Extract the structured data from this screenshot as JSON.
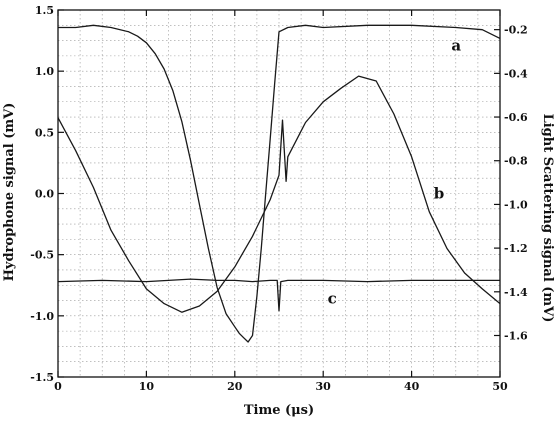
{
  "chart_data": {
    "type": "line",
    "xlabel": "Time  (μs)",
    "ylabel_left": "Hydrophone signal (mV)",
    "ylabel_right": "Light Scattering signal (mV)",
    "xlim": [
      0,
      50
    ],
    "ylim_left": [
      -1.5,
      1.5
    ],
    "ylim_right": [
      -1.79,
      -0.11
    ],
    "x_ticks": [
      "0",
      "10",
      "20",
      "30",
      "40",
      "50"
    ],
    "y_left_ticks": [
      "1.5",
      "1.0",
      "0.5",
      "0.0",
      "-0.5",
      "-1.0",
      "-1.5"
    ],
    "y_right_ticks": [
      "-0.2",
      "-0.4",
      "-0.6",
      "-0.8",
      "-1.0",
      "-1.2",
      "-1.4",
      "-1.6"
    ],
    "grid": true,
    "series": [
      {
        "name": "a",
        "axis": "right",
        "x": [
          0,
          2,
          4,
          6,
          8,
          9,
          10,
          11,
          12,
          13,
          14,
          15,
          16,
          17,
          18,
          19,
          20,
          20.5,
          21,
          21.5,
          22,
          22.5,
          23,
          23.5,
          24,
          24.5,
          25,
          26,
          28,
          30,
          35,
          40,
          45,
          48,
          50
        ],
        "y": [
          -0.19,
          -0.19,
          -0.18,
          -0.19,
          -0.21,
          -0.23,
          -0.26,
          -0.31,
          -0.38,
          -0.48,
          -0.62,
          -0.8,
          -1.0,
          -1.2,
          -1.38,
          -1.5,
          -1.56,
          -1.59,
          -1.61,
          -1.63,
          -1.6,
          -1.42,
          -1.2,
          -0.95,
          -0.7,
          -0.45,
          -0.21,
          -0.19,
          -0.18,
          -0.19,
          -0.18,
          -0.18,
          -0.19,
          -0.2,
          -0.24
        ]
      },
      {
        "name": "b",
        "axis": "left",
        "x": [
          0,
          2,
          4,
          6,
          8,
          10,
          12,
          14,
          16,
          18,
          20,
          22,
          24,
          25,
          25.4,
          25.8,
          26,
          28,
          30,
          32,
          34,
          36,
          38,
          40,
          42,
          44,
          46,
          48,
          50
        ],
        "y": [
          0.62,
          0.35,
          0.05,
          -0.3,
          -0.55,
          -0.78,
          -0.9,
          -0.97,
          -0.92,
          -0.8,
          -0.6,
          -0.35,
          -0.05,
          0.15,
          0.6,
          0.1,
          0.3,
          0.58,
          0.75,
          0.86,
          0.96,
          0.92,
          0.65,
          0.3,
          -0.15,
          -0.45,
          -0.65,
          -0.78,
          -0.9
        ]
      },
      {
        "name": "c",
        "axis": "left",
        "x": [
          0,
          5,
          10,
          15,
          18,
          20,
          22,
          24,
          24.8,
          25,
          25.2,
          26,
          30,
          35,
          40,
          45,
          50
        ],
        "y": [
          -0.72,
          -0.71,
          -0.72,
          -0.7,
          -0.71,
          -0.71,
          -0.72,
          -0.71,
          -0.71,
          -0.96,
          -0.72,
          -0.71,
          -0.71,
          -0.72,
          -0.71,
          -0.71,
          -0.71
        ]
      }
    ],
    "annotations": [
      {
        "text": "a",
        "x": 44.5,
        "y_left": 1.17
      },
      {
        "text": "b",
        "x": 42.5,
        "y_left": -0.04
      },
      {
        "text": "c",
        "x": 30.5,
        "y_left": -0.9
      }
    ]
  }
}
